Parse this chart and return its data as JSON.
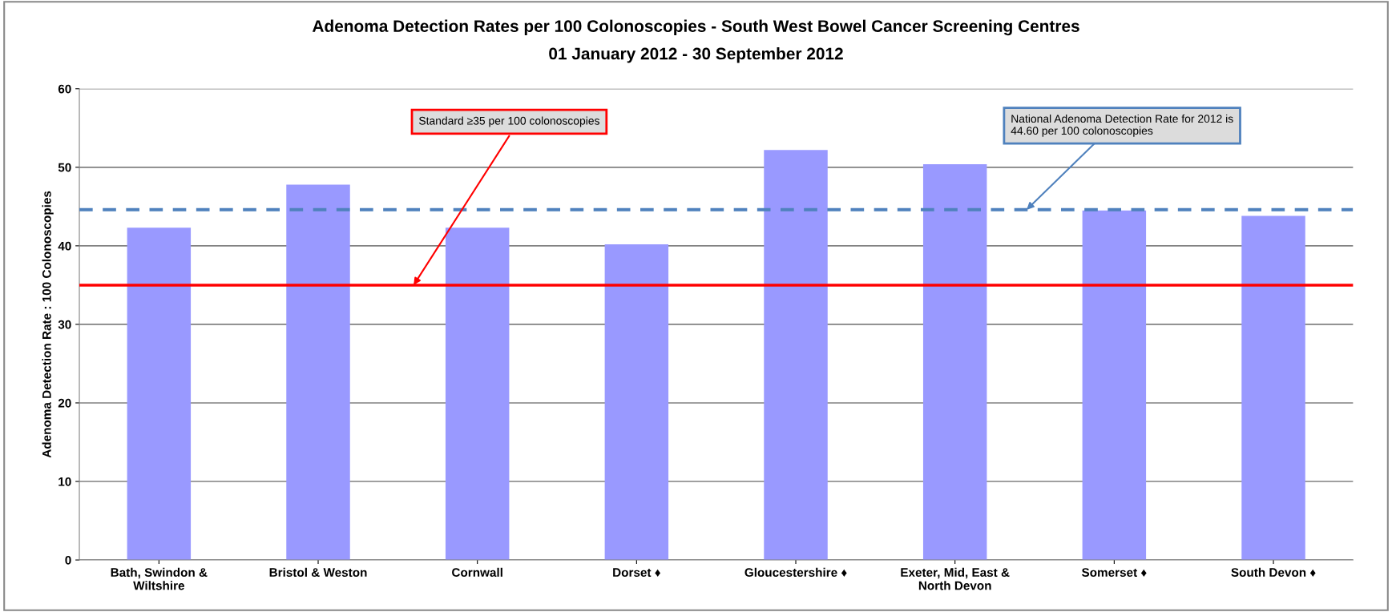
{
  "chart_data": {
    "type": "bar",
    "title": "Adenoma Detection Rates per 100 Colonoscopies - South West Bowel Cancer Screening Centres",
    "subtitle": "01 January 2012 - 30 September 2012",
    "ylabel": "Adenoma Detection Rate : 100 Colonoscopies",
    "categories": [
      "Bath, Swindon &\nWiltshire",
      "Bristol & Weston",
      "Cornwall",
      "Dorset ♦",
      "Gloucestershire ♦",
      "Exeter, Mid, East &\nNorth Devon",
      "Somerset ♦",
      "South Devon ♦"
    ],
    "values": [
      42.3,
      47.8,
      42.3,
      40.2,
      52.2,
      50.4,
      44.5,
      43.8
    ],
    "color": "#9999ff",
    "ylim": [
      0,
      60
    ],
    "yticks": [
      0,
      10,
      20,
      30,
      40,
      50,
      60
    ],
    "grid": "y",
    "ref_lines": [
      {
        "axis": "y",
        "value": 35,
        "label": "Standard ≥35 per 100 colonoscopies",
        "color": "#ff0000",
        "line_style": "solid"
      },
      {
        "axis": "y",
        "value": 44.6,
        "label": "National Adenoma Detection Rate for 2012 is\n44.60 per 100 colonoscopies",
        "color": "#4f81bd",
        "line_style": "dashed"
      }
    ]
  }
}
